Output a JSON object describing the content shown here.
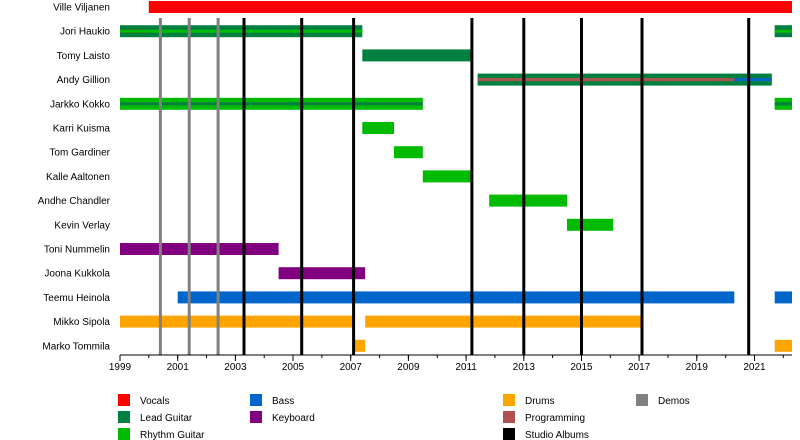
{
  "chart_data": {
    "type": "timeline",
    "x_ticks": [
      1999,
      2001,
      2003,
      2005,
      2007,
      2009,
      2011,
      2013,
      2015,
      2017,
      2019,
      2021
    ],
    "x_range": [
      1999,
      2022.3
    ],
    "members": [
      "Ville Viljanen",
      "Jori Haukio",
      "Tomy Laisto",
      "Andy Gillion",
      "Jarkko Kokko",
      "Karri Kuisma",
      "Tom Gardiner",
      "Kalle Aaltonen",
      "Andhe Chandler",
      "Kevin Verlay",
      "Toni Nummelin",
      "Joona Kukkola",
      "Teemu Heinola",
      "Mikko Sipola",
      "Marko Tommila"
    ],
    "roles": [
      {
        "key": "vocals",
        "label": "Vocals",
        "color": "#ff0000"
      },
      {
        "key": "lead",
        "label": "Lead Guitar",
        "color": "#008040"
      },
      {
        "key": "rhythm",
        "label": "Rhythm Guitar",
        "color": "#00bb00"
      },
      {
        "key": "bass",
        "label": "Bass",
        "color": "#0066cc"
      },
      {
        "key": "keyboard",
        "label": "Keyboard",
        "color": "#800080"
      },
      {
        "key": "drums",
        "label": "Drums",
        "color": "#ffa500"
      },
      {
        "key": "programming",
        "label": "Programming",
        "color": "#b05050"
      },
      {
        "key": "albums",
        "label": "Studio Albums",
        "color": "#000000"
      },
      {
        "key": "demos",
        "label": "Demos",
        "color": "#808080"
      }
    ],
    "bars": [
      {
        "member": 0,
        "role": "vocals",
        "start": 2000.0,
        "end": 2022.3
      },
      {
        "member": 1,
        "role": "lead",
        "start": 1999.0,
        "end": 2007.4
      },
      {
        "member": 1,
        "role": "lead",
        "start": 2021.7,
        "end": 2022.3
      },
      {
        "member": 2,
        "role": "lead",
        "start": 2007.4,
        "end": 2011.2
      },
      {
        "member": 3,
        "role": "lead",
        "start": 2011.4,
        "end": 2021.6
      },
      {
        "member": 4,
        "role": "rhythm",
        "start": 1999.0,
        "end": 2009.5
      },
      {
        "member": 4,
        "role": "rhythm",
        "start": 2021.7,
        "end": 2022.3
      },
      {
        "member": 5,
        "role": "rhythm",
        "start": 2007.4,
        "end": 2008.5
      },
      {
        "member": 6,
        "role": "rhythm",
        "start": 2008.5,
        "end": 2009.5
      },
      {
        "member": 7,
        "role": "rhythm",
        "start": 2009.5,
        "end": 2011.2
      },
      {
        "member": 8,
        "role": "rhythm",
        "start": 2011.8,
        "end": 2014.5
      },
      {
        "member": 9,
        "role": "rhythm",
        "start": 2014.5,
        "end": 2016.1
      },
      {
        "member": 10,
        "role": "keyboard",
        "start": 1999.0,
        "end": 2004.5
      },
      {
        "member": 11,
        "role": "keyboard",
        "start": 2004.5,
        "end": 2007.5
      },
      {
        "member": 12,
        "role": "bass",
        "start": 2001.0,
        "end": 2020.3
      },
      {
        "member": 12,
        "role": "bass",
        "start": 2021.7,
        "end": 2022.3
      },
      {
        "member": 13,
        "role": "drums",
        "start": 1999.0,
        "end": 2007.1
      },
      {
        "member": 13,
        "role": "drums",
        "start": 2007.5,
        "end": 2017.1
      },
      {
        "member": 14,
        "role": "drums",
        "start": 2007.1,
        "end": 2007.5
      },
      {
        "member": 14,
        "role": "drums",
        "start": 2021.7,
        "end": 2022.3
      }
    ],
    "overlays": [
      {
        "member": 1,
        "role": "vocals",
        "start": 1999.0,
        "end": 2000.0
      },
      {
        "member": 1,
        "role": "rhythm",
        "start": 1999.0,
        "end": 2007.4
      },
      {
        "member": 1,
        "role": "rhythm",
        "start": 2021.7,
        "end": 2022.3
      },
      {
        "member": 3,
        "role": "rhythm",
        "start": 2011.4,
        "end": 2021.6
      },
      {
        "member": 3,
        "role": "programming",
        "start": 2011.4,
        "end": 2021.6
      },
      {
        "member": 3,
        "role": "bass",
        "start": 2020.3,
        "end": 2021.6
      },
      {
        "member": 4,
        "role": "lead",
        "start": 1999.0,
        "end": 2009.5
      },
      {
        "member": 4,
        "role": "lead",
        "start": 2021.7,
        "end": 2022.3
      }
    ],
    "album_years": [
      2003.3,
      2005.3,
      2007.1,
      2011.2,
      2013.0,
      2015.0,
      2017.1,
      2020.8
    ],
    "demo_years": [
      2000.4,
      2001.4,
      2002.4
    ]
  }
}
